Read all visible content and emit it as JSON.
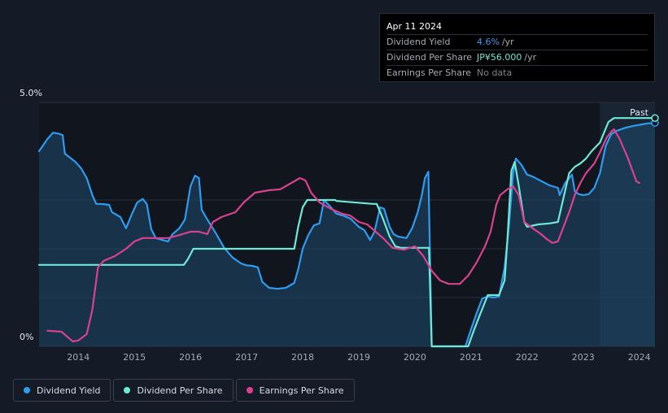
{
  "tooltip": {
    "date": "Apr 11 2024",
    "rows": [
      {
        "label": "Dividend Yield",
        "value": "4.6%",
        "unit": "/yr"
      },
      {
        "label": "Dividend Per Share",
        "value": "JP¥56.000",
        "unit": "/yr"
      },
      {
        "label": "Earnings Per Share",
        "value": "No data",
        "unit": ""
      }
    ]
  },
  "legend": [
    {
      "label": "Dividend Yield",
      "color": "#2e9bef"
    },
    {
      "label": "Dividend Per Share",
      "color": "#6fe8d6"
    },
    {
      "label": "Earnings Per Share",
      "color": "#d8428d"
    }
  ],
  "chart_data": {
    "type": "line",
    "ylabel_top": "5.0%",
    "ylabel_bottom": "0%",
    "ylim": [
      0,
      5.0
    ],
    "xlim": [
      2013.3,
      2024.28
    ],
    "x_ticks": [
      "2014",
      "2015",
      "2016",
      "2017",
      "2018",
      "2019",
      "2020",
      "2021",
      "2022",
      "2023",
      "2024"
    ],
    "past_label": "Past",
    "past_start": 2023.3,
    "series": [
      {
        "name": "Dividend Yield",
        "color": "#2e9bef",
        "area": true,
        "points": [
          [
            2013.3,
            4.0
          ],
          [
            2013.45,
            4.25
          ],
          [
            2013.55,
            4.38
          ],
          [
            2013.65,
            4.36
          ],
          [
            2013.72,
            4.33
          ],
          [
            2013.76,
            3.95
          ],
          [
            2013.85,
            3.87
          ],
          [
            2013.95,
            3.78
          ],
          [
            2014.05,
            3.65
          ],
          [
            2014.15,
            3.45
          ],
          [
            2014.25,
            3.1
          ],
          [
            2014.32,
            2.92
          ],
          [
            2014.4,
            2.92
          ],
          [
            2014.55,
            2.9
          ],
          [
            2014.6,
            2.75
          ],
          [
            2014.75,
            2.65
          ],
          [
            2014.85,
            2.42
          ],
          [
            2014.95,
            2.7
          ],
          [
            2015.05,
            2.95
          ],
          [
            2015.15,
            3.02
          ],
          [
            2015.22,
            2.92
          ],
          [
            2015.3,
            2.4
          ],
          [
            2015.38,
            2.22
          ],
          [
            2015.5,
            2.18
          ],
          [
            2015.6,
            2.15
          ],
          [
            2015.68,
            2.3
          ],
          [
            2015.8,
            2.42
          ],
          [
            2015.9,
            2.6
          ],
          [
            2016.0,
            3.28
          ],
          [
            2016.08,
            3.5
          ],
          [
            2016.15,
            3.45
          ],
          [
            2016.2,
            2.8
          ],
          [
            2016.3,
            2.6
          ],
          [
            2016.45,
            2.32
          ],
          [
            2016.6,
            2.02
          ],
          [
            2016.75,
            1.82
          ],
          [
            2016.9,
            1.7
          ],
          [
            2017.0,
            1.66
          ],
          [
            2017.1,
            1.65
          ],
          [
            2017.2,
            1.62
          ],
          [
            2017.28,
            1.32
          ],
          [
            2017.4,
            1.2
          ],
          [
            2017.55,
            1.18
          ],
          [
            2017.7,
            1.2
          ],
          [
            2017.85,
            1.3
          ],
          [
            2017.92,
            1.58
          ],
          [
            2018.0,
            2.0
          ],
          [
            2018.1,
            2.28
          ],
          [
            2018.2,
            2.48
          ],
          [
            2018.3,
            2.52
          ],
          [
            2018.38,
            3.0
          ],
          [
            2018.48,
            2.88
          ],
          [
            2018.6,
            2.72
          ],
          [
            2018.72,
            2.68
          ],
          [
            2018.85,
            2.62
          ],
          [
            2019.0,
            2.45
          ],
          [
            2019.1,
            2.38
          ],
          [
            2019.2,
            2.18
          ],
          [
            2019.28,
            2.35
          ],
          [
            2019.38,
            2.85
          ],
          [
            2019.45,
            2.82
          ],
          [
            2019.55,
            2.45
          ],
          [
            2019.62,
            2.3
          ],
          [
            2019.7,
            2.25
          ],
          [
            2019.85,
            2.22
          ],
          [
            2019.95,
            2.42
          ],
          [
            2020.05,
            2.75
          ],
          [
            2020.12,
            3.08
          ],
          [
            2020.18,
            3.45
          ],
          [
            2020.24,
            3.58
          ],
          [
            2020.3,
            0.0
          ],
          [
            2020.9,
            0.0
          ],
          [
            2021.0,
            0.35
          ],
          [
            2021.1,
            0.68
          ],
          [
            2021.2,
            0.98
          ],
          [
            2021.3,
            1.02
          ],
          [
            2021.4,
            1.0
          ],
          [
            2021.5,
            1.02
          ],
          [
            2021.6,
            1.62
          ],
          [
            2021.68,
            2.5
          ],
          [
            2021.75,
            3.55
          ],
          [
            2021.8,
            3.85
          ],
          [
            2021.9,
            3.72
          ],
          [
            2022.0,
            3.52
          ],
          [
            2022.1,
            3.48
          ],
          [
            2022.2,
            3.42
          ],
          [
            2022.4,
            3.3
          ],
          [
            2022.55,
            3.25
          ],
          [
            2022.58,
            3.1
          ],
          [
            2022.68,
            3.35
          ],
          [
            2022.8,
            3.52
          ],
          [
            2022.85,
            3.18
          ],
          [
            2022.92,
            3.12
          ],
          [
            2023.0,
            3.1
          ],
          [
            2023.1,
            3.12
          ],
          [
            2023.2,
            3.25
          ],
          [
            2023.3,
            3.55
          ],
          [
            2023.4,
            4.1
          ],
          [
            2023.5,
            4.35
          ],
          [
            2023.6,
            4.42
          ],
          [
            2023.75,
            4.48
          ],
          [
            2023.9,
            4.52
          ],
          [
            2024.05,
            4.55
          ],
          [
            2024.15,
            4.57
          ],
          [
            2024.28,
            4.58
          ]
        ]
      },
      {
        "name": "Dividend Per Share",
        "color": "#6fe8d6",
        "area": false,
        "points": [
          [
            2013.3,
            1.67
          ],
          [
            2015.88,
            1.67
          ],
          [
            2015.95,
            1.78
          ],
          [
            2016.05,
            2.0
          ],
          [
            2016.1,
            2.0
          ],
          [
            2017.85,
            2.0
          ],
          [
            2017.92,
            2.45
          ],
          [
            2018.0,
            2.85
          ],
          [
            2018.08,
            3.0
          ],
          [
            2018.58,
            3.0
          ],
          [
            2018.6,
            2.98
          ],
          [
            2019.25,
            2.92
          ],
          [
            2019.32,
            2.92
          ],
          [
            2019.42,
            2.65
          ],
          [
            2019.55,
            2.25
          ],
          [
            2019.65,
            2.05
          ],
          [
            2019.75,
            2.02
          ],
          [
            2020.25,
            2.02
          ],
          [
            2020.3,
            0.0
          ],
          [
            2020.95,
            0.0
          ],
          [
            2021.05,
            0.32
          ],
          [
            2021.15,
            0.62
          ],
          [
            2021.3,
            1.05
          ],
          [
            2021.5,
            1.05
          ],
          [
            2021.6,
            1.35
          ],
          [
            2021.65,
            2.2
          ],
          [
            2021.72,
            3.6
          ],
          [
            2021.78,
            3.78
          ],
          [
            2021.85,
            3.3
          ],
          [
            2021.95,
            2.55
          ],
          [
            2022.0,
            2.45
          ],
          [
            2022.2,
            2.5
          ],
          [
            2022.4,
            2.52
          ],
          [
            2022.55,
            2.55
          ],
          [
            2022.6,
            2.8
          ],
          [
            2022.75,
            3.55
          ],
          [
            2022.85,
            3.68
          ],
          [
            2022.95,
            3.75
          ],
          [
            2023.05,
            3.85
          ],
          [
            2023.15,
            4.0
          ],
          [
            2023.3,
            4.18
          ],
          [
            2023.45,
            4.6
          ],
          [
            2023.55,
            4.68
          ],
          [
            2024.28,
            4.68
          ]
        ]
      },
      {
        "name": "Earnings Per Share",
        "color": "#d8428d",
        "area": false,
        "points": [
          [
            2013.45,
            0.32
          ],
          [
            2013.7,
            0.3
          ],
          [
            2013.82,
            0.18
          ],
          [
            2013.9,
            0.1
          ],
          [
            2014.0,
            0.12
          ],
          [
            2014.15,
            0.25
          ],
          [
            2014.25,
            0.75
          ],
          [
            2014.35,
            1.62
          ],
          [
            2014.45,
            1.75
          ],
          [
            2014.65,
            1.85
          ],
          [
            2014.85,
            2.0
          ],
          [
            2015.0,
            2.15
          ],
          [
            2015.15,
            2.22
          ],
          [
            2015.35,
            2.22
          ],
          [
            2015.6,
            2.22
          ],
          [
            2015.8,
            2.28
          ],
          [
            2016.0,
            2.35
          ],
          [
            2016.15,
            2.35
          ],
          [
            2016.3,
            2.3
          ],
          [
            2016.4,
            2.55
          ],
          [
            2016.55,
            2.65
          ],
          [
            2016.8,
            2.75
          ],
          [
            2016.95,
            2.95
          ],
          [
            2017.15,
            3.15
          ],
          [
            2017.4,
            3.2
          ],
          [
            2017.6,
            3.22
          ],
          [
            2017.8,
            3.35
          ],
          [
            2017.95,
            3.45
          ],
          [
            2018.05,
            3.4
          ],
          [
            2018.15,
            3.15
          ],
          [
            2018.3,
            2.95
          ],
          [
            2018.5,
            2.82
          ],
          [
            2018.7,
            2.72
          ],
          [
            2018.85,
            2.68
          ],
          [
            2019.0,
            2.55
          ],
          [
            2019.15,
            2.5
          ],
          [
            2019.3,
            2.35
          ],
          [
            2019.45,
            2.2
          ],
          [
            2019.6,
            2.02
          ],
          [
            2019.8,
            1.98
          ],
          [
            2020.0,
            2.05
          ],
          [
            2020.15,
            1.85
          ],
          [
            2020.3,
            1.55
          ],
          [
            2020.45,
            1.35
          ],
          [
            2020.6,
            1.28
          ],
          [
            2020.8,
            1.28
          ],
          [
            2020.95,
            1.45
          ],
          [
            2021.1,
            1.72
          ],
          [
            2021.25,
            2.05
          ],
          [
            2021.35,
            2.35
          ],
          [
            2021.45,
            2.9
          ],
          [
            2021.52,
            3.1
          ],
          [
            2021.65,
            3.22
          ],
          [
            2021.75,
            3.28
          ],
          [
            2021.85,
            3.1
          ],
          [
            2021.95,
            2.55
          ],
          [
            2022.1,
            2.42
          ],
          [
            2022.25,
            2.3
          ],
          [
            2022.35,
            2.2
          ],
          [
            2022.45,
            2.12
          ],
          [
            2022.55,
            2.15
          ],
          [
            2022.65,
            2.45
          ],
          [
            2022.75,
            2.75
          ],
          [
            2022.85,
            3.1
          ],
          [
            2022.95,
            3.35
          ],
          [
            2023.05,
            3.55
          ],
          [
            2023.2,
            3.75
          ],
          [
            2023.3,
            3.98
          ],
          [
            2023.42,
            4.28
          ],
          [
            2023.5,
            4.4
          ],
          [
            2023.55,
            4.45
          ],
          [
            2023.65,
            4.25
          ],
          [
            2023.8,
            3.85
          ],
          [
            2023.95,
            3.38
          ],
          [
            2024.0,
            3.35
          ]
        ]
      }
    ]
  }
}
